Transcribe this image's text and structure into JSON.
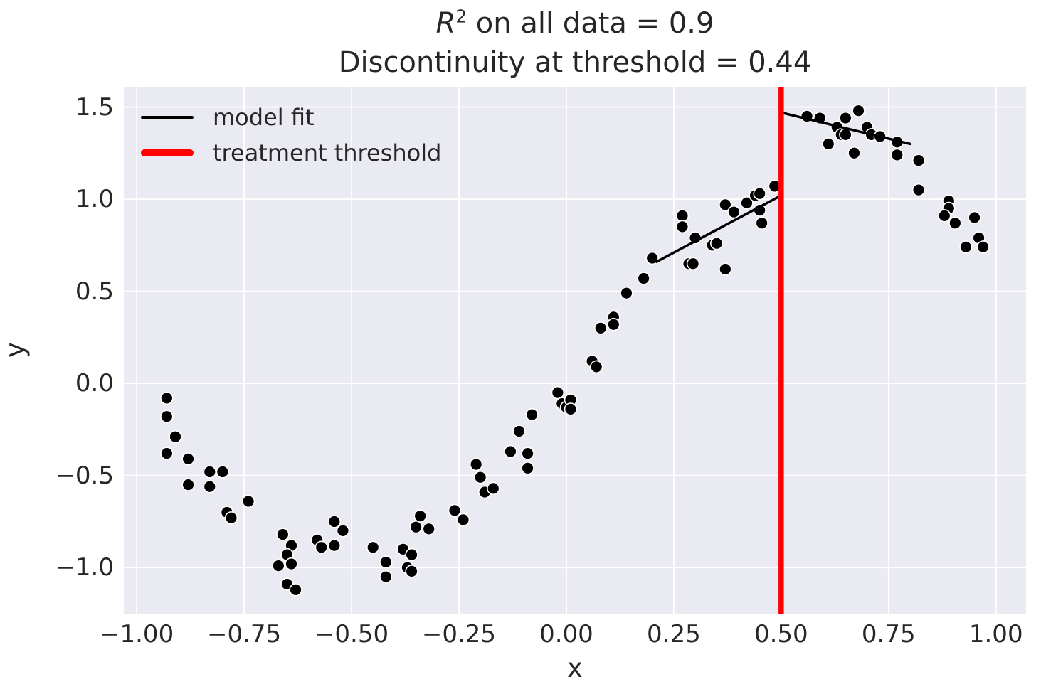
{
  "chart_data": {
    "type": "scatter",
    "title": {
      "r_symbol": "R",
      "r_superscript": "2",
      "line1_rest": " on all data = 0.9",
      "line2": "Discontinuity at threshold = 0.44"
    },
    "stats": {
      "r_squared_all_data": 0.9,
      "discontinuity_at_threshold": 0.44
    },
    "xlabel": "x",
    "ylabel": "y",
    "xlim": [
      -1.03,
      1.07
    ],
    "ylim": [
      -1.25,
      1.61
    ],
    "grid": true,
    "plot_background": "#EAEAF2",
    "grid_color": "#FFFFFF",
    "text_color": "#262626",
    "x_ticks": {
      "values": [
        -1.0,
        -0.75,
        -0.5,
        -0.25,
        0.0,
        0.25,
        0.5,
        0.75,
        1.0
      ],
      "labels": [
        "−1.00",
        "−0.75",
        "−0.50",
        "−0.25",
        "0.00",
        "0.25",
        "0.50",
        "0.75",
        "1.00"
      ]
    },
    "y_ticks": {
      "values": [
        1.5,
        1.0,
        0.5,
        0.0,
        -0.5,
        -1.0
      ],
      "labels": [
        "1.5",
        "1.0",
        "0.5",
        "0.0",
        "−0.5",
        "−1.0"
      ]
    },
    "legend": {
      "position": "upper left",
      "entries": [
        {
          "label": "model fit",
          "color": "#000000",
          "linewidth": 4
        },
        {
          "label": "treatment threshold",
          "color": "#FF0000",
          "linewidth": 10
        }
      ]
    },
    "threshold_line": {
      "x": 0.5,
      "color": "#FF0000",
      "linewidth": 7.5
    },
    "fit_lines": [
      {
        "name": "fit-left-of-threshold",
        "x1": 0.21,
        "y1": 0.66,
        "x2": 0.5,
        "y2": 1.02,
        "color": "#000000",
        "linewidth": 3.5
      },
      {
        "name": "fit-right-of-threshold",
        "x1": 0.5,
        "y1": 1.47,
        "x2": 0.8,
        "y2": 1.3,
        "color": "#000000",
        "linewidth": 3.5
      }
    ],
    "marker": {
      "color": "#000000",
      "edge_color": "#FFFFFF",
      "radius": 8.4,
      "edge_width": 1.6
    },
    "points": [
      [
        -0.93,
        -0.08
      ],
      [
        -0.93,
        -0.18
      ],
      [
        -0.91,
        -0.29
      ],
      [
        -0.93,
        -0.38
      ],
      [
        -0.88,
        -0.41
      ],
      [
        -0.83,
        -0.48
      ],
      [
        -0.8,
        -0.48
      ],
      [
        -0.88,
        -0.55
      ],
      [
        -0.83,
        -0.56
      ],
      [
        -0.74,
        -0.64
      ],
      [
        -0.79,
        -0.7
      ],
      [
        -0.78,
        -0.73
      ],
      [
        -0.66,
        -0.82
      ],
      [
        -0.64,
        -0.88
      ],
      [
        -0.65,
        -0.93
      ],
      [
        -0.67,
        -0.99
      ],
      [
        -0.64,
        -0.98
      ],
      [
        -0.65,
        -1.09
      ],
      [
        -0.63,
        -1.12
      ],
      [
        -0.58,
        -0.85
      ],
      [
        -0.57,
        -0.89
      ],
      [
        -0.54,
        -0.88
      ],
      [
        -0.54,
        -0.75
      ],
      [
        -0.52,
        -0.8
      ],
      [
        -0.45,
        -0.89
      ],
      [
        -0.42,
        -0.97
      ],
      [
        -0.42,
        -1.05
      ],
      [
        -0.38,
        -0.9
      ],
      [
        -0.37,
        -1.0
      ],
      [
        -0.36,
        -1.02
      ],
      [
        -0.36,
        -0.93
      ],
      [
        -0.34,
        -0.72
      ],
      [
        -0.35,
        -0.78
      ],
      [
        -0.32,
        -0.79
      ],
      [
        -0.26,
        -0.69
      ],
      [
        -0.24,
        -0.74
      ],
      [
        -0.21,
        -0.44
      ],
      [
        -0.2,
        -0.51
      ],
      [
        -0.19,
        -0.59
      ],
      [
        -0.17,
        -0.57
      ],
      [
        -0.13,
        -0.37
      ],
      [
        -0.11,
        -0.26
      ],
      [
        -0.09,
        -0.38
      ],
      [
        -0.09,
        -0.46
      ],
      [
        -0.08,
        -0.17
      ],
      [
        -0.02,
        -0.05
      ],
      [
        -0.01,
        -0.11
      ],
      [
        0.0,
        -0.13
      ],
      [
        0.01,
        -0.09
      ],
      [
        0.01,
        -0.14
      ],
      [
        0.06,
        0.12
      ],
      [
        0.07,
        0.09
      ],
      [
        0.08,
        0.3
      ],
      [
        0.11,
        0.36
      ],
      [
        0.11,
        0.32
      ],
      [
        0.14,
        0.49
      ],
      [
        0.18,
        0.57
      ],
      [
        0.2,
        0.68
      ],
      [
        0.27,
        0.91
      ],
      [
        0.27,
        0.85
      ],
      [
        0.3,
        0.79
      ],
      [
        0.285,
        0.65
      ],
      [
        0.295,
        0.65
      ],
      [
        0.34,
        0.75
      ],
      [
        0.35,
        0.76
      ],
      [
        0.37,
        0.97
      ],
      [
        0.39,
        0.93
      ],
      [
        0.37,
        0.62
      ],
      [
        0.42,
        0.98
      ],
      [
        0.44,
        1.02
      ],
      [
        0.45,
        1.03
      ],
      [
        0.45,
        0.94
      ],
      [
        0.455,
        0.87
      ],
      [
        0.485,
        1.07
      ],
      [
        0.56,
        1.45
      ],
      [
        0.59,
        1.44
      ],
      [
        0.61,
        1.3
      ],
      [
        0.63,
        1.39
      ],
      [
        0.64,
        1.35
      ],
      [
        0.65,
        1.44
      ],
      [
        0.65,
        1.35
      ],
      [
        0.67,
        1.25
      ],
      [
        0.68,
        1.48
      ],
      [
        0.7,
        1.39
      ],
      [
        0.71,
        1.35
      ],
      [
        0.73,
        1.34
      ],
      [
        0.77,
        1.31
      ],
      [
        0.77,
        1.24
      ],
      [
        0.82,
        1.21
      ],
      [
        0.82,
        1.05
      ],
      [
        0.89,
        0.99
      ],
      [
        0.89,
        0.95
      ],
      [
        0.88,
        0.91
      ],
      [
        0.905,
        0.87
      ],
      [
        0.95,
        0.9
      ],
      [
        0.93,
        0.74
      ],
      [
        0.96,
        0.79
      ],
      [
        0.97,
        0.74
      ]
    ]
  }
}
